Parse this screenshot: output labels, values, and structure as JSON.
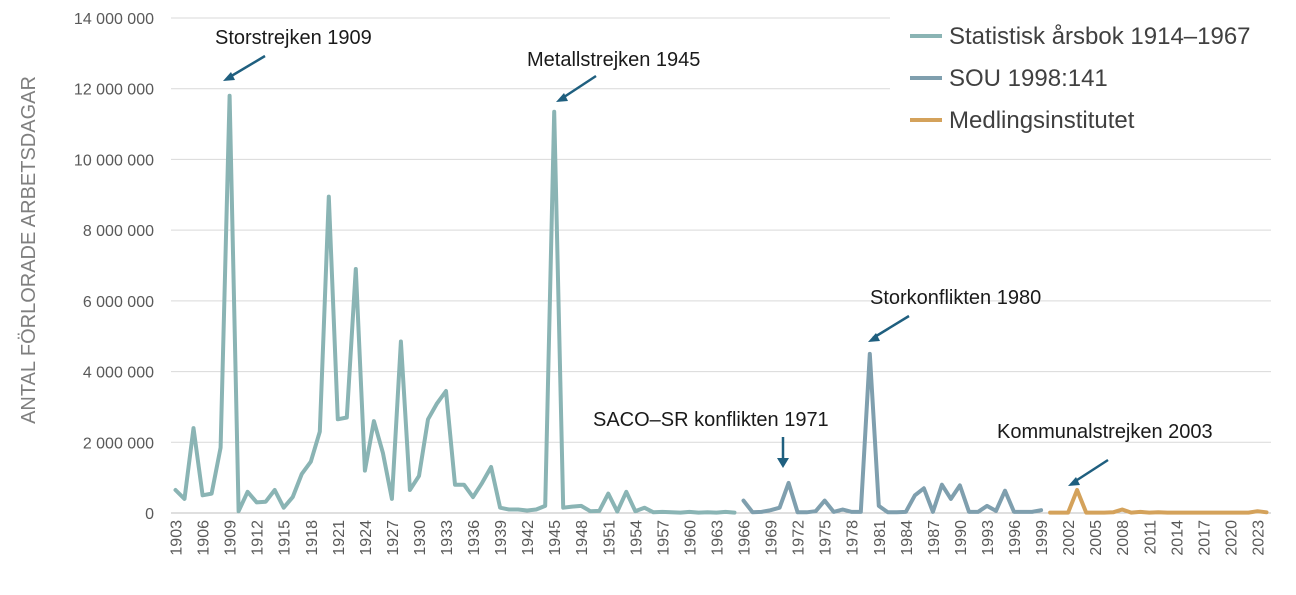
{
  "chart_data": {
    "type": "line",
    "ylabel": "ANTAL FÖRLORADE ARBETSDAGAR",
    "ylim": [
      0,
      14000000
    ],
    "yticks": [
      0,
      2000000,
      4000000,
      6000000,
      8000000,
      10000000,
      12000000,
      14000000
    ],
    "ytick_labels": [
      "0",
      "2 000 000",
      "4 000 000",
      "6 000 000",
      "8 000 000",
      "10 000 000",
      "12 000 000",
      "14 000 000"
    ],
    "xlim": [
      1903,
      2024
    ],
    "xtick_labels": [
      "1903",
      "1906",
      "1909",
      "1912",
      "1915",
      "1918",
      "1921",
      "1924",
      "1927",
      "1930",
      "1933",
      "1936",
      "1939",
      "1942",
      "1945",
      "1948",
      "1951",
      "1954",
      "1957",
      "1960",
      "1963",
      "1966",
      "1969",
      "1972",
      "1975",
      "1978",
      "1981",
      "1984",
      "1987",
      "1990",
      "1993",
      "1996",
      "1999",
      "2002",
      "2005",
      "2008",
      "2011",
      "2014",
      "2017",
      "2020",
      "2023"
    ],
    "grid": true,
    "legend_position": "top-right",
    "series": [
      {
        "name": "Statistisk årsbok 1914–1967",
        "color": "#8ab4b4",
        "x": [
          1903,
          1904,
          1905,
          1906,
          1907,
          1908,
          1909,
          1910,
          1911,
          1912,
          1913,
          1914,
          1915,
          1916,
          1917,
          1918,
          1919,
          1920,
          1921,
          1922,
          1923,
          1924,
          1925,
          1926,
          1927,
          1928,
          1929,
          1930,
          1931,
          1932,
          1933,
          1934,
          1935,
          1936,
          1937,
          1938,
          1939,
          1940,
          1941,
          1942,
          1943,
          1944,
          1945,
          1946,
          1947,
          1948,
          1949,
          1950,
          1951,
          1952,
          1953,
          1954,
          1955,
          1956,
          1957,
          1958,
          1959,
          1960,
          1961,
          1962,
          1963,
          1964,
          1965
        ],
        "y": [
          650000,
          400000,
          2400000,
          500000,
          550000,
          1850000,
          11800000,
          50000,
          600000,
          300000,
          320000,
          650000,
          150000,
          450000,
          1100000,
          1450000,
          2300000,
          8950000,
          2650000,
          2700000,
          6900000,
          1200000,
          2600000,
          1700000,
          400000,
          4850000,
          650000,
          1050000,
          2650000,
          3100000,
          3450000,
          800000,
          800000,
          450000,
          850000,
          1300000,
          150000,
          100000,
          100000,
          70000,
          100000,
          200000,
          11350000,
          150000,
          180000,
          200000,
          50000,
          60000,
          550000,
          40000,
          600000,
          50000,
          150000,
          20000,
          30000,
          20000,
          10000,
          30000,
          10000,
          20000,
          10000,
          30000,
          10000
        ]
      },
      {
        "name": "SOU 1998:141",
        "color": "#7f9fae",
        "x": [
          1966,
          1967,
          1968,
          1969,
          1970,
          1971,
          1972,
          1973,
          1974,
          1975,
          1976,
          1977,
          1978,
          1979,
          1980,
          1981,
          1982,
          1983,
          1984,
          1985,
          1986,
          1987,
          1988,
          1989,
          1990,
          1991,
          1992,
          1993,
          1994,
          1995,
          1996,
          1997,
          1998,
          1999
        ],
        "y": [
          350000,
          20000,
          30000,
          80000,
          150000,
          850000,
          20000,
          20000,
          50000,
          350000,
          30000,
          100000,
          30000,
          30000,
          4500000,
          200000,
          20000,
          20000,
          30000,
          500000,
          700000,
          30000,
          800000,
          400000,
          780000,
          30000,
          30000,
          200000,
          60000,
          630000,
          30000,
          30000,
          30000,
          80000
        ]
      },
      {
        "name": "Medlingsinstitutet",
        "color": "#d4a25b",
        "x": [
          2000,
          2001,
          2002,
          2003,
          2004,
          2005,
          2006,
          2007,
          2008,
          2009,
          2010,
          2011,
          2012,
          2013,
          2014,
          2015,
          2016,
          2017,
          2018,
          2019,
          2020,
          2021,
          2022,
          2023,
          2024
        ],
        "y": [
          10000,
          10000,
          10000,
          650000,
          10000,
          10000,
          10000,
          20000,
          100000,
          10000,
          30000,
          10000,
          20000,
          10000,
          10000,
          10000,
          10000,
          10000,
          10000,
          10000,
          10000,
          10000,
          10000,
          50000,
          20000
        ]
      }
    ],
    "annotations": [
      {
        "text": "Storstrejken 1909",
        "year": 1909
      },
      {
        "text": "Metallstrejken 1945",
        "year": 1945
      },
      {
        "text": "Storkonflikten  1980",
        "year": 1980
      },
      {
        "text": "SACO–SR konflikten 1971",
        "year": 1971
      },
      {
        "text": "Kommunalstrejken 2003",
        "year": 2003
      }
    ]
  }
}
